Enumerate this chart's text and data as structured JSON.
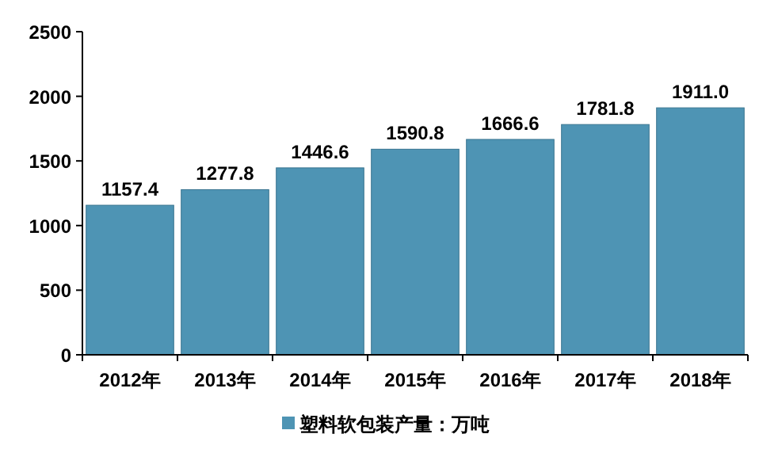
{
  "chart_data": {
    "type": "bar",
    "categories": [
      "2012年",
      "2013年",
      "2014年",
      "2015年",
      "2016年",
      "2017年",
      "2018年"
    ],
    "series": [
      {
        "name": "塑料软包装产量：万吨",
        "color": "#4e94b4",
        "values": [
          1157.4,
          1277.8,
          1446.6,
          1590.8,
          1666.6,
          1781.8,
          1911.0
        ]
      }
    ],
    "value_labels": [
      "1157.4",
      "1277.8",
      "1446.6",
      "1590.8",
      "1666.6",
      "1781.8",
      "1911.0"
    ],
    "ylim": [
      0,
      2500
    ],
    "yticks": [
      0,
      500,
      1000,
      1500,
      2000,
      2500
    ],
    "grid": false,
    "legend": "bottom"
  }
}
